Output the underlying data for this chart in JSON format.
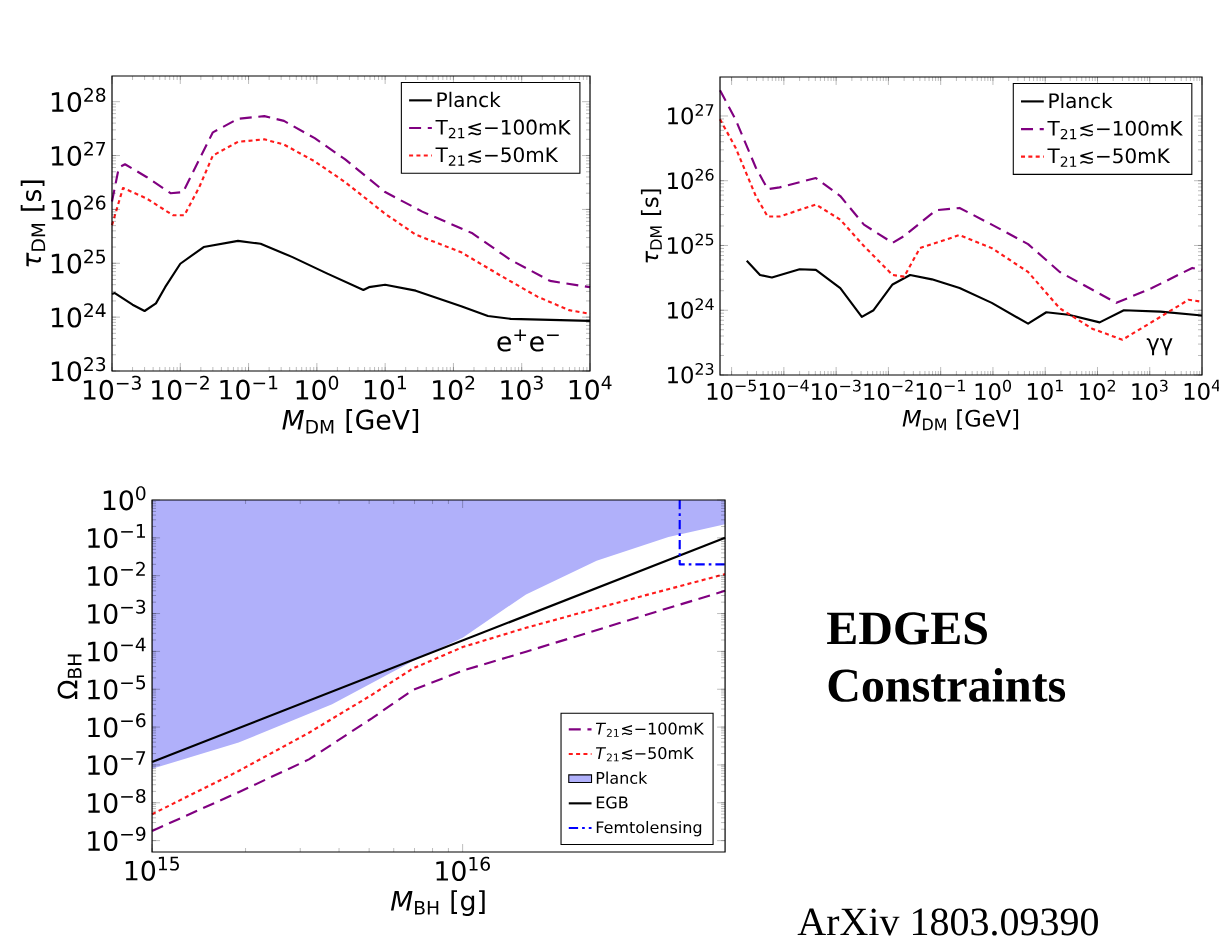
{
  "chart_data": [
    {
      "type": "line",
      "xlabel": "*M*$_{DM}$ [GeV]",
      "ylabel": "*τ*$_{DM}$ [s]",
      "log": "xy",
      "legend": "top right",
      "xlim": [
        0.001,
        10000
      ],
      "ylim": [
        1e+23,
        3e+28
      ],
      "xticks": [
        {
          "value": 0.001,
          "label": "10$^{−3}$"
        },
        {
          "value": 0.01,
          "label": "10$^{−2}$"
        },
        {
          "value": 0.1,
          "label": "10$^{−1}$"
        },
        {
          "value": 1,
          "label": "10$^{0}$"
        },
        {
          "value": 10,
          "label": "10$^{1}$"
        },
        {
          "value": 100,
          "label": "10$^{2}$"
        },
        {
          "value": 1000,
          "label": "10$^{3}$"
        },
        {
          "value": 10000,
          "label": "10$^{4}$"
        }
      ],
      "yticks": [
        {
          "value": 1e+23,
          "label": "10$^{23}$"
        },
        {
          "value": 1e+24,
          "label": "10$^{24}$"
        },
        {
          "value": 1e+25,
          "label": "10$^{25}$"
        },
        {
          "value": 1e+26,
          "label": "10$^{26}$"
        },
        {
          "value": 1e+27,
          "label": "10$^{27}$"
        },
        {
          "value": 1e+28,
          "label": "10$^{28}$"
        }
      ],
      "annotations": [
        "e$^{+}$e$^{−}$"
      ],
      "series": [
        {
          "name": "Planck",
          "color": "#000000",
          "line_style": "solid",
          "x": [
            0.001,
            0.0011,
            0.002,
            0.003,
            0.0044,
            0.006,
            0.01,
            0.022,
            0.07,
            0.15,
            0.44,
            1.4,
            4.8,
            5.8,
            10,
            28,
            130,
            320,
            690,
            10000
          ],
          "values": [
            2.7e+24,
            2.8e+24,
            1.7e+24,
            1.3e+24,
            1.8e+24,
            3.6e+24,
            9.8e+24,
            2e+25,
            2.6e+25,
            2.3e+25,
            1.3e+25,
            6.5e+24,
            3.2e+24,
            3.6e+24,
            4e+24,
            3.1e+24,
            1.6e+24,
            1.05e+24,
            9.3e+23,
            8.5e+23
          ]
        },
        {
          "name": "T$_{21}$≲−100mK",
          "color": "#800080",
          "line_style": "dashed",
          "x": [
            0.001,
            0.00126,
            0.00155,
            0.0032,
            0.0072,
            0.011,
            0.019,
            0.03,
            0.07,
            0.17,
            0.33,
            0.93,
            2.6,
            10,
            35,
            190,
            690,
            2600,
            10000
          ],
          "values": [
            1.4e+26,
            6e+26,
            6.9e+26,
            4e+26,
            2e+26,
            2.1e+26,
            8.5e+26,
            2.7e+27,
            4.8e+27,
            5.4e+27,
            4.4e+27,
            2.1e+27,
            8.5e+26,
            2.1e+26,
            9.1e+25,
            3.6e+25,
            1.15e+25,
            4.7e+24,
            3.6e+24
          ]
        },
        {
          "name": "T$_{21}$≲−50mK",
          "color": "#ff1a1a",
          "line_style": "dotted",
          "x": [
            0.001,
            0.00145,
            0.0032,
            0.0078,
            0.0115,
            0.019,
            0.03,
            0.07,
            0.17,
            0.33,
            0.93,
            2.6,
            10,
            28,
            130,
            480,
            1700,
            4900,
            10000
          ],
          "values": [
            5.1e+25,
            2.5e+26,
            1.6e+26,
            7.8e+25,
            7.8e+25,
            2.6e+26,
            1e+27,
            1.8e+27,
            2e+27,
            1.6e+27,
            7.8e+26,
            3.2e+26,
            8.3e+25,
            3.4e+25,
            1.6e+25,
            6e+24,
            2.4e+24,
            1.35e+24,
            1.15e+24
          ]
        }
      ]
    },
    {
      "type": "line",
      "xlabel": "*M*$_{DM}$ [GeV]",
      "ylabel": "*τ*$_{DM}$ [s]",
      "log": "xy",
      "legend": "top right",
      "xlim": [
        6e-06,
        10000
      ],
      "ylim": [
        1e+23,
        4e+27
      ],
      "xticks": [
        {
          "value": 1e-05,
          "label": "10$^{−5}$"
        },
        {
          "value": 0.0001,
          "label": "10$^{−4}$"
        },
        {
          "value": 0.001,
          "label": "10$^{−3}$"
        },
        {
          "value": 0.01,
          "label": "10$^{−2}$"
        },
        {
          "value": 0.1,
          "label": "10$^{−1}$"
        },
        {
          "value": 1,
          "label": "10$^{0}$"
        },
        {
          "value": 10,
          "label": "10$^{1}$"
        },
        {
          "value": 100,
          "label": "10$^{2}$"
        },
        {
          "value": 1000,
          "label": "10$^{3}$"
        },
        {
          "value": 10000,
          "label": "10$^{4}$"
        }
      ],
      "yticks": [
        {
          "value": 1e+23,
          "label": "10$^{23}$"
        },
        {
          "value": 1e+24,
          "label": "10$^{24}$"
        },
        {
          "value": 1e+25,
          "label": "10$^{25}$"
        },
        {
          "value": 1e+26,
          "label": "10$^{26}$"
        },
        {
          "value": 1e+27,
          "label": "10$^{27}$"
        }
      ],
      "annotations": [
        "γγ"
      ],
      "series": [
        {
          "name": "Planck",
          "color": "#000000",
          "line_style": "solid",
          "x": [
            1.95e-05,
            3.5e-05,
            5.9e-05,
            0.0002,
            0.00041,
            0.0012,
            0.0031,
            0.0052,
            0.012,
            0.026,
            0.068,
            0.23,
            0.95,
            4.7,
            10.5,
            28,
            110,
            320,
            1600,
            10000
          ],
          "values": [
            5.8e+24,
            3.5e+24,
            3.2e+24,
            4.3e+24,
            4.2e+24,
            2.2e+24,
            7.9e+23,
            1e+24,
            2.5e+24,
            3.5e+24,
            3e+24,
            2.2e+24,
            1.3e+24,
            6.2e+23,
            9.3e+23,
            8.5e+23,
            6.5e+23,
            1e+24,
            9.5e+23,
            8.3e+23
          ]
        },
        {
          "name": "T$_{21}$≲−100mK",
          "color": "#800080",
          "line_style": "dashed",
          "x": [
            6e-06,
            1.2e-05,
            2.9e-05,
            4.9e-05,
            8.3e-05,
            0.00041,
            0.0012,
            0.0034,
            0.012,
            0.02,
            0.081,
            0.23,
            0.95,
            4.7,
            19,
            230,
            1100,
            6500,
            10000
          ],
          "values": [
            2.5e+27,
            8.7e+26,
            1.6e+26,
            7.4e+25,
            7.9e+25,
            1.1e+26,
            5.8e+25,
            2.1e+25,
            1.1e+25,
            1.4e+25,
            3.5e+25,
            3.8e+25,
            2.1e+25,
            1.05e+25,
            3.9e+24,
            1.3e+24,
            2.2e+24,
            4.5e+24,
            4.2e+24
          ]
        },
        {
          "name": "T$_{21}$≲−50mK",
          "color": "#ff1a1a",
          "line_style": "dotted",
          "x": [
            6e-06,
            1.2e-05,
            2.9e-05,
            4.9e-05,
            8.3e-05,
            0.00041,
            0.0012,
            0.0034,
            0.012,
            0.02,
            0.04,
            0.23,
            0.95,
            4.7,
            19,
            79,
            300,
            1600,
            5500,
            10000
          ],
          "values": [
            8.9e+26,
            3.2e+26,
            5.8e+25,
            2.8e+25,
            2.8e+25,
            4.3e+25,
            2.5e+25,
            9.8e+24,
            3.5e+24,
            3.3e+24,
            9.1e+24,
            1.45e+25,
            9.1e+24,
            3.9e+24,
            1.07e+24,
            5.2e+23,
            3.5e+23,
            7.9e+23,
            1.45e+24,
            1.35e+24
          ]
        }
      ]
    },
    {
      "type": "line",
      "xlabel": "*M*$_{BH}$ [g]",
      "ylabel": "Ω$_{BH}$",
      "log": "xy",
      "legend": "bottom right",
      "xlim": [
        1000000000000000.0,
        7e+16
      ],
      "ylim": [
        5e-10,
        1
      ],
      "xticks": [
        {
          "value": 1000000000000000.0,
          "label": "10$^{15}$"
        },
        {
          "value": 1e+16,
          "label": "10$^{16}$"
        }
      ],
      "yticks": [
        {
          "value": 1e-09,
          "label": "10$^{−9}$"
        },
        {
          "value": 1e-08,
          "label": "10$^{−8}$"
        },
        {
          "value": 1e-07,
          "label": "10$^{−7}$"
        },
        {
          "value": 1e-06,
          "label": "10$^{−6}$"
        },
        {
          "value": 1e-05,
          "label": "10$^{−5}$"
        },
        {
          "value": 0.0001,
          "label": "10$^{−4}$"
        },
        {
          "value": 0.001,
          "label": "10$^{−3}$"
        },
        {
          "value": 0.01,
          "label": "10$^{−2}$"
        },
        {
          "value": 0.1,
          "label": "10$^{−1}$"
        },
        {
          "value": 1,
          "label": "10$^{0}$"
        }
      ],
      "series": [
        {
          "name": "*T*$_{21}$≲−100mK",
          "color": "#800080",
          "line_style": "dashed",
          "x": [
            1000000000000000.0,
            1900000000000000.0,
            3200000000000000.0,
            5100000000000000.0,
            6900000000000000.0,
            1e+16,
            1.6e+16,
            3.2e+16,
            7e+16
          ],
          "values": [
            1.8e-09,
            1.9e-08,
            1.4e-07,
            1.7e-06,
            9.5e-06,
            3.1e-05,
            9.8e-05,
            0.00056,
            0.004
          ]
        },
        {
          "name": "*T*$_{21}$≲−50mK",
          "color": "#ff1a1a",
          "line_style": "dotted",
          "x": [
            1000000000000000.0,
            1900000000000000.0,
            3200000000000000.0,
            5100000000000000.0,
            6900000000000000.0,
            1e+16,
            1.6e+16,
            3.2e+16,
            7e+16
          ],
          "values": [
            5e-09,
            6.9e-08,
            7.1e-07,
            7.1e-06,
            3.5e-05,
            0.00013,
            0.00042,
            0.002,
            0.011
          ]
        },
        {
          "name": "Planck",
          "type": "area",
          "color": "#b0b0fa",
          "x": [
            1000000000000000.0,
            1900000000000000.0,
            3800000000000000.0,
            6900000000000000.0,
            1e+16,
            1.6e+16,
            2.7e+16,
            4.6e+16,
            7e+16,
            7e+16,
            1000000000000000.0
          ],
          "values": [
            7.9e-08,
            3.9e-07,
            4e-06,
            5.5e-05,
            0.00023,
            0.0032,
            0.025,
            0.105,
            0.23,
            1,
            1
          ]
        },
        {
          "name": "EGB",
          "color": "#000000",
          "line_style": "solid",
          "x": [
            1000000000000000.0,
            7e+16
          ],
          "values": [
            1.2e-07,
            0.1
          ]
        },
        {
          "name": "Femtolensing",
          "color": "#0000ff",
          "line_style": "dashdot",
          "x": [
            5e+16,
            5e+16,
            7e+16
          ],
          "values": [
            1,
            0.02,
            0.02
          ]
        }
      ]
    },
    {
      "type": "other",
      "title": "**EDGES Constraints**",
      "annotations": [
        "ArXiv 1803.09390"
      ]
    }
  ]
}
